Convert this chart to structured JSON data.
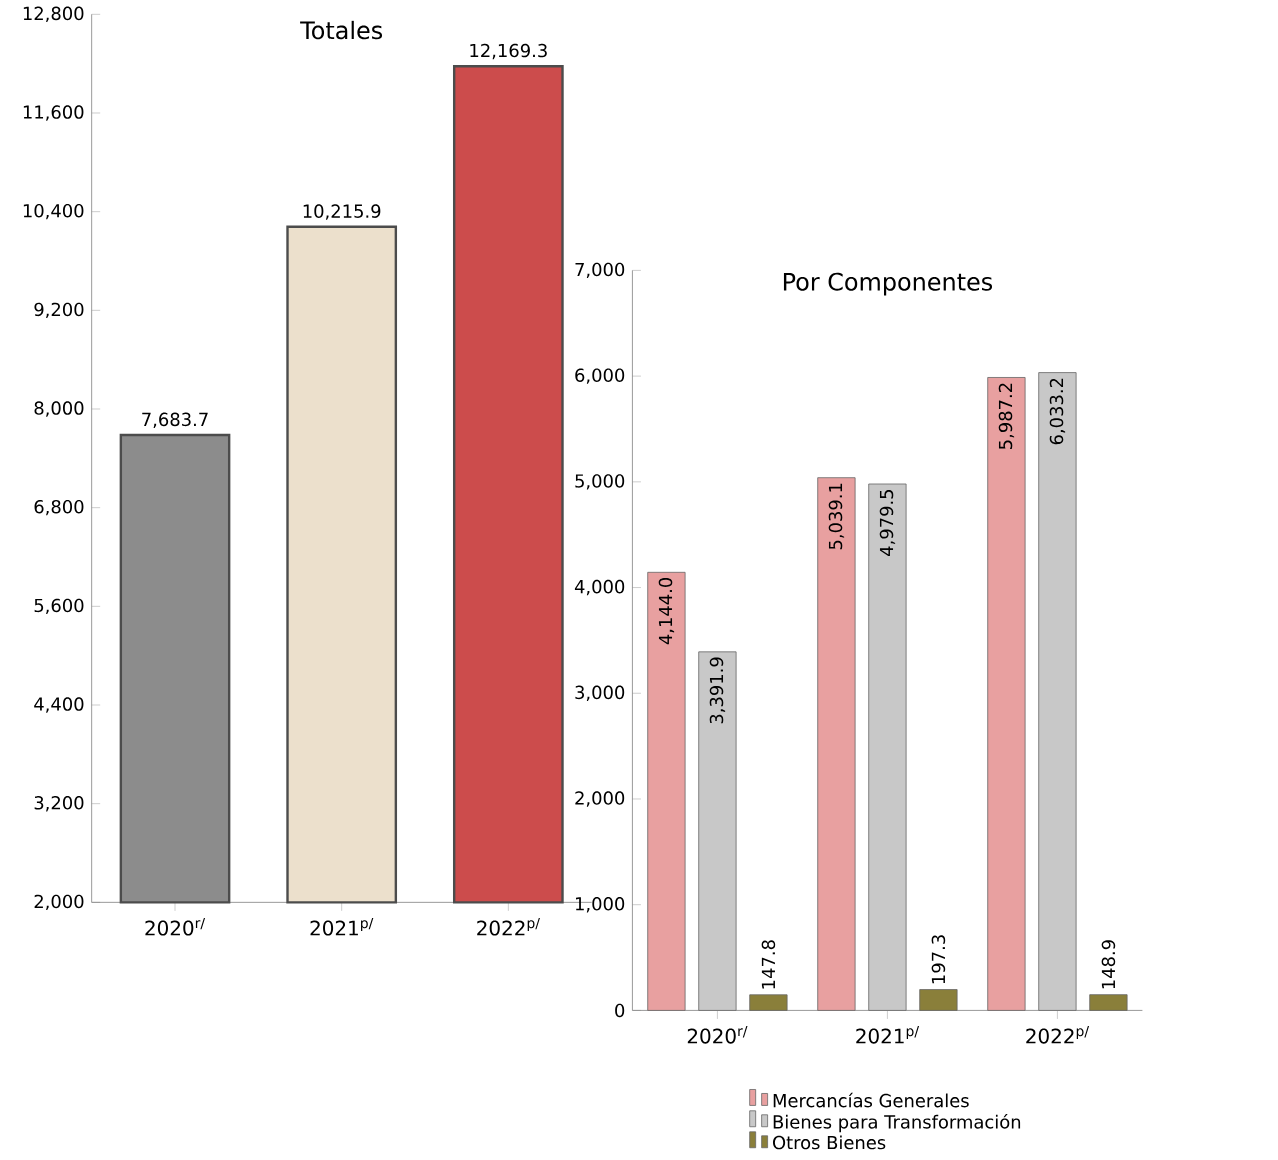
{
  "chart_data": [
    {
      "type": "bar",
      "title": "Totales",
      "categories": [
        "2020$^{r/}$",
        "2021$^{p/}$",
        "2022$^{p/}$"
      ],
      "values": [
        7683.7,
        10215.9,
        12169.3
      ],
      "colors": [
        "#8c8c8c",
        "#ece0cc",
        "#cc4c4c"
      ],
      "value_labels": [
        "7,683.7",
        "10,215.9",
        "12,169.3"
      ],
      "ylim": [
        2000,
        12800
      ],
      "yticks": [
        {
          "value": 2000,
          "label": "2,000"
        },
        {
          "value": 3200,
          "label": "3,200"
        },
        {
          "value": 4400,
          "label": "4,400"
        },
        {
          "value": 5600,
          "label": "5,600"
        },
        {
          "value": 6800,
          "label": "6,800"
        },
        {
          "value": 8000,
          "label": "8,000"
        },
        {
          "value": 9200,
          "label": "9,200"
        },
        {
          "value": 10400,
          "label": "10,400"
        },
        {
          "value": 11600,
          "label": "11,600"
        },
        {
          "value": 12800,
          "label": "12,800"
        }
      ]
    },
    {
      "type": "bar",
      "title": "Por Componentes",
      "categories": [
        "2020$^{r/}$",
        "2021$^{p/}$",
        "2022$^{p/}$"
      ],
      "legend": "bottom",
      "ylim": [
        0,
        7000
      ],
      "yticks": [
        {
          "value": 0,
          "label": "0"
        },
        {
          "value": 1000,
          "label": "1,000"
        },
        {
          "value": 2000,
          "label": "2,000"
        },
        {
          "value": 3000,
          "label": "3,000"
        },
        {
          "value": 4000,
          "label": "4,000"
        },
        {
          "value": 5000,
          "label": "5,000"
        },
        {
          "value": 6000,
          "label": "6,000"
        },
        {
          "value": 7000,
          "label": "7,000"
        }
      ],
      "series": [
        {
          "name": "Mercancías Generales",
          "color": "#e8a0a0",
          "values": [
            4144.0,
            5039.1,
            5987.2
          ],
          "value_labels": [
            "4,144.0",
            "5,039.1",
            "5,987.2"
          ]
        },
        {
          "name": "Bienes para Transformación",
          "color": "#c8c8c8",
          "values": [
            3391.9,
            4979.5,
            6033.2
          ],
          "value_labels": [
            "3,391.9",
            "4,979.5",
            "6,033.2"
          ]
        },
        {
          "name": "Otros Bienes",
          "color": "#8a7f3a",
          "values": [
            147.8,
            197.3,
            148.9
          ],
          "value_labels": [
            "147.8",
            "197.3",
            "148.9"
          ]
        }
      ]
    }
  ]
}
